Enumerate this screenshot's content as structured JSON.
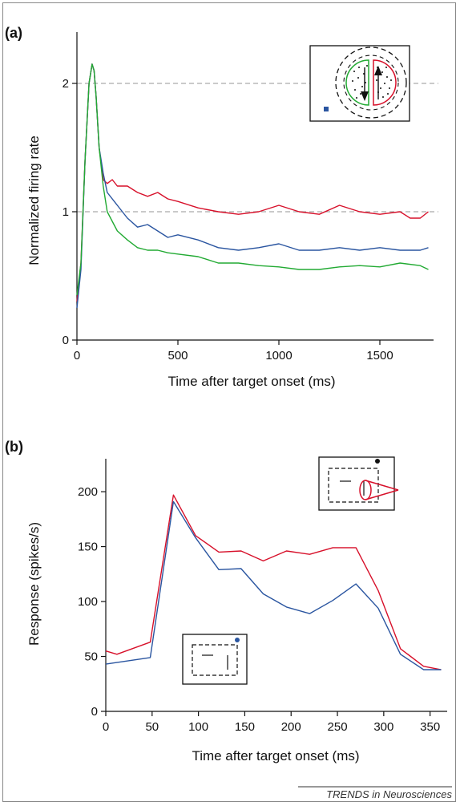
{
  "figure": {
    "credit": "TRENDS in Neurosciences"
  },
  "chart_data": [
    {
      "panel": "(a)",
      "type": "line",
      "xlabel": "Time after target onset (ms)",
      "ylabel": "Normalized firing rate",
      "xlim": [
        0,
        1750
      ],
      "ylim": [
        0,
        2.4
      ],
      "xticks": [
        0,
        500,
        1000,
        1500
      ],
      "yticks": [
        0,
        1,
        2
      ],
      "reference_lines": [
        1,
        2
      ],
      "colors": {
        "red": "#d7102a",
        "blue": "#2a55a0",
        "green": "#22aa33",
        "ref": "#aaaaaa"
      },
      "series": [
        {
          "color": "#d7102a",
          "x": [
            0,
            20,
            40,
            60,
            75,
            85,
            95,
            110,
            130,
            150,
            175,
            200,
            250,
            300,
            350,
            400,
            450,
            500,
            600,
            700,
            800,
            900,
            1000,
            1100,
            1200,
            1300,
            1400,
            1500,
            1600,
            1650,
            1700,
            1740
          ],
          "y": [
            0.3,
            0.6,
            1.4,
            2.0,
            2.15,
            2.1,
            1.9,
            1.5,
            1.25,
            1.22,
            1.25,
            1.2,
            1.2,
            1.15,
            1.12,
            1.15,
            1.1,
            1.08,
            1.03,
            1.0,
            0.98,
            1.0,
            1.05,
            1.0,
            0.98,
            1.05,
            1.0,
            0.98,
            1.0,
            0.95,
            0.95,
            1.0
          ]
        },
        {
          "color": "#2a55a0",
          "x": [
            0,
            20,
            40,
            60,
            75,
            85,
            95,
            110,
            130,
            150,
            200,
            250,
            300,
            350,
            400,
            450,
            500,
            600,
            700,
            800,
            900,
            1000,
            1100,
            1200,
            1300,
            1400,
            1500,
            1600,
            1700,
            1740
          ],
          "y": [
            0.25,
            0.55,
            1.4,
            2.0,
            2.15,
            2.1,
            1.9,
            1.5,
            1.3,
            1.15,
            1.05,
            0.95,
            0.88,
            0.9,
            0.85,
            0.8,
            0.82,
            0.78,
            0.72,
            0.7,
            0.72,
            0.75,
            0.7,
            0.7,
            0.72,
            0.7,
            0.72,
            0.7,
            0.7,
            0.72
          ]
        },
        {
          "color": "#22aa33",
          "x": [
            0,
            20,
            40,
            60,
            75,
            85,
            95,
            110,
            130,
            150,
            200,
            250,
            300,
            350,
            400,
            450,
            500,
            600,
            700,
            800,
            900,
            1000,
            1100,
            1200,
            1300,
            1400,
            1500,
            1600,
            1700,
            1740
          ],
          "y": [
            0.35,
            0.6,
            1.4,
            2.0,
            2.15,
            2.1,
            1.9,
            1.5,
            1.2,
            1.0,
            0.85,
            0.78,
            0.72,
            0.7,
            0.7,
            0.68,
            0.67,
            0.65,
            0.6,
            0.6,
            0.58,
            0.57,
            0.55,
            0.55,
            0.57,
            0.58,
            0.57,
            0.6,
            0.58,
            0.55
          ]
        }
      ]
    },
    {
      "panel": "(b)",
      "type": "line",
      "xlabel": "Time after target onset (ms)",
      "ylabel": "Response (spikes/s)",
      "xlim": [
        0,
        365
      ],
      "ylim": [
        0,
        230
      ],
      "xticks": [
        0,
        50,
        100,
        150,
        200,
        250,
        300,
        350
      ],
      "yticks": [
        0,
        50,
        100,
        150,
        200
      ],
      "colors": {
        "red": "#d7102a",
        "blue": "#2a55a0"
      },
      "series": [
        {
          "color": "#d7102a",
          "x": [
            0,
            12,
            48,
            73,
            97,
            122,
            146,
            170,
            195,
            220,
            245,
            270,
            294,
            318,
            343,
            362
          ],
          "y": [
            55,
            52,
            63,
            197,
            160,
            145,
            146,
            137,
            146,
            143,
            149,
            149,
            110,
            57,
            41,
            38
          ]
        },
        {
          "color": "#2a55a0",
          "x": [
            0,
            48,
            73,
            97,
            122,
            146,
            170,
            195,
            220,
            245,
            270,
            294,
            318,
            343,
            362
          ],
          "y": [
            43,
            49,
            191,
            158,
            129,
            130,
            107,
            95,
            89,
            101,
            116,
            94,
            52,
            38,
            38
          ]
        }
      ]
    }
  ]
}
